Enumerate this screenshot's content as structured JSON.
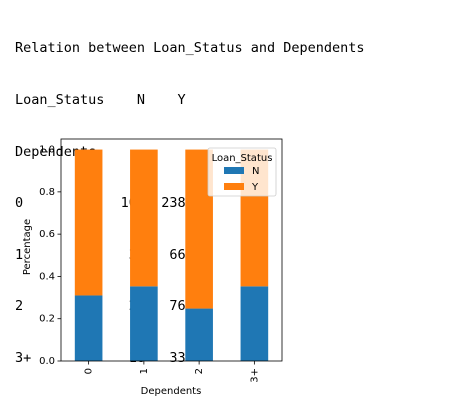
{
  "output": {
    "title": "Relation between Loan_Status and Dependents",
    "table_header_1": "Loan_Status    N    Y",
    "table_header_2": "Dependents",
    "rows": [
      "0            107  238",
      "1             36   66",
      "2             25   76",
      "3+            18   33"
    ]
  },
  "chart_data": {
    "type": "bar",
    "stacked": true,
    "categories": [
      "0",
      "1",
      "2",
      "3+"
    ],
    "series": [
      {
        "name": "N",
        "values": [
          0.31,
          0.353,
          0.248,
          0.353
        ],
        "color": "#1f77b4"
      },
      {
        "name": "Y",
        "values": [
          0.69,
          0.647,
          0.752,
          0.647
        ],
        "color": "#ff7f0e"
      }
    ],
    "xlabel": "Dependents",
    "ylabel": "Percentage",
    "ylim": [
      0,
      1.05
    ],
    "yticks": [
      "0.0",
      "0.2",
      "0.4",
      "0.6",
      "0.8",
      "1.0"
    ],
    "legend_title": "Loan_Status",
    "legend_position": "top-right",
    "grid": false
  }
}
